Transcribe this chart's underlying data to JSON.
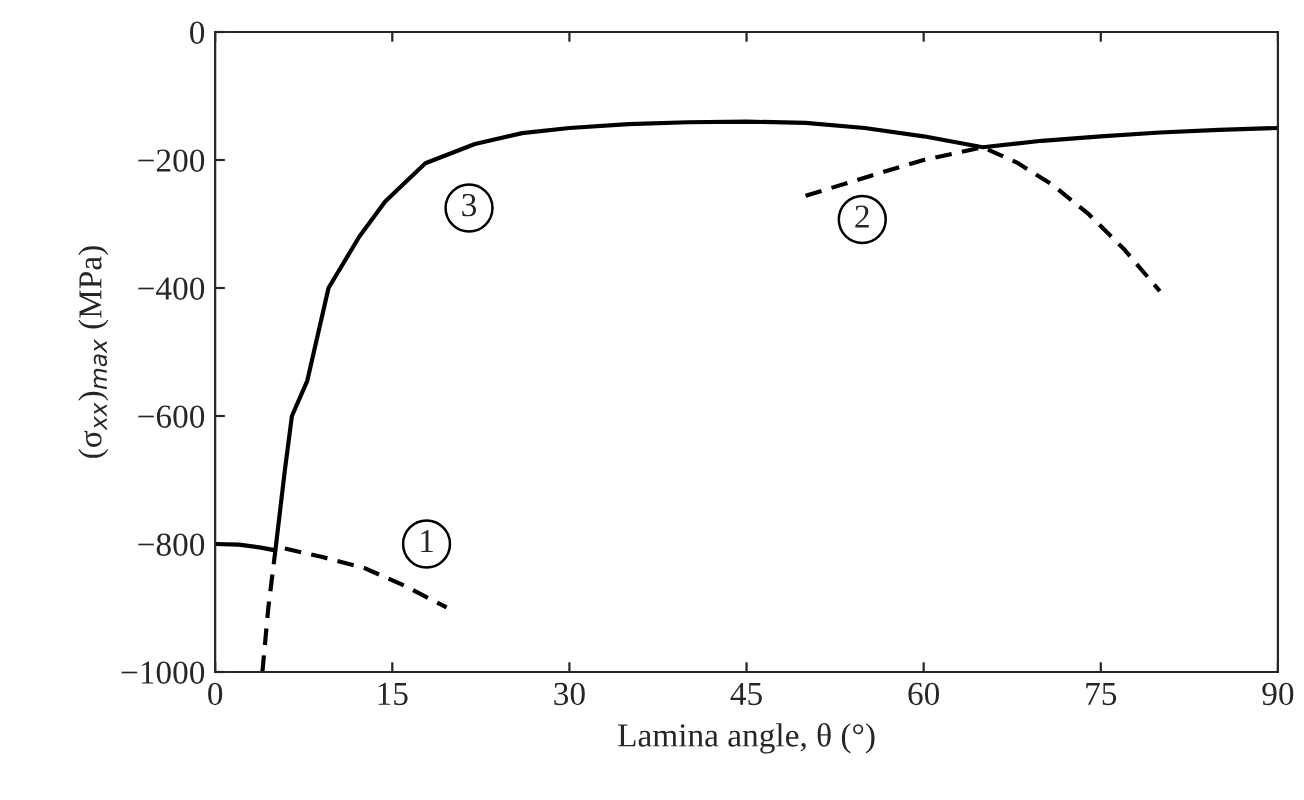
{
  "chart_data": {
    "type": "line",
    "xlabel": "Lamina angle, θ (°)",
    "ylabel": "(σ$_{xx}$)$_{max}$ (MPa)",
    "xlim": [
      0,
      90
    ],
    "xticks": [
      0,
      15,
      30,
      45,
      60,
      75,
      90
    ],
    "ylim": [
      -1000,
      0
    ],
    "yticks": [
      {
        "value": -1000,
        "label": "−1000"
      },
      {
        "value": -800,
        "label": "−800"
      },
      {
        "value": -600,
        "label": "−600"
      },
      {
        "value": -400,
        "label": "−400"
      },
      {
        "value": -200,
        "label": "−200"
      },
      0
    ],
    "grid": false,
    "legend": false,
    "marker": "none",
    "series": [
      {
        "color": "#000000",
        "line_style": "dashed",
        "x": [
          5.9,
          9,
          12.7,
          16,
          19.6
        ],
        "values": [
          -807,
          -820,
          -838,
          -865,
          -899
        ]
      },
      {
        "color": "#000000",
        "line_style": "dashed",
        "x": [
          4.0,
          4.5,
          5.1
        ],
        "values": [
          -1000,
          -900,
          -810
        ]
      },
      {
        "color": "#000000",
        "line_style": "solid",
        "x": [
          0,
          2,
          4,
          5.1,
          5.9,
          6.5,
          7.8,
          9.6,
          12.2,
          14.4,
          17.8,
          22,
          26,
          30,
          35,
          40,
          45,
          50,
          55,
          60,
          65,
          70,
          75,
          80,
          85,
          90
        ],
        "values": [
          -800,
          -801,
          -806,
          -810,
          -685,
          -600,
          -545,
          -400,
          -320,
          -265,
          -205,
          -175,
          -158,
          -150,
          -144,
          -141,
          -140,
          -142,
          -150,
          -163,
          -180,
          -170,
          -163,
          -157,
          -153,
          -150
        ]
      },
      {
        "color": "#000000",
        "line_style": "dashed",
        "x": [
          50,
          56.7,
          60,
          65,
          68,
          71,
          74,
          77,
          80
        ],
        "values": [
          -256,
          -218,
          -200,
          -180,
          -205,
          -240,
          -285,
          -340,
          -405
        ]
      }
    ],
    "annotations": [
      {
        "text": "1",
        "x": 17.9,
        "y": -800
      },
      {
        "text": "2",
        "x": 54.8,
        "y": -293
      },
      {
        "text": "3",
        "x": 21.5,
        "y": -275
      }
    ]
  }
}
